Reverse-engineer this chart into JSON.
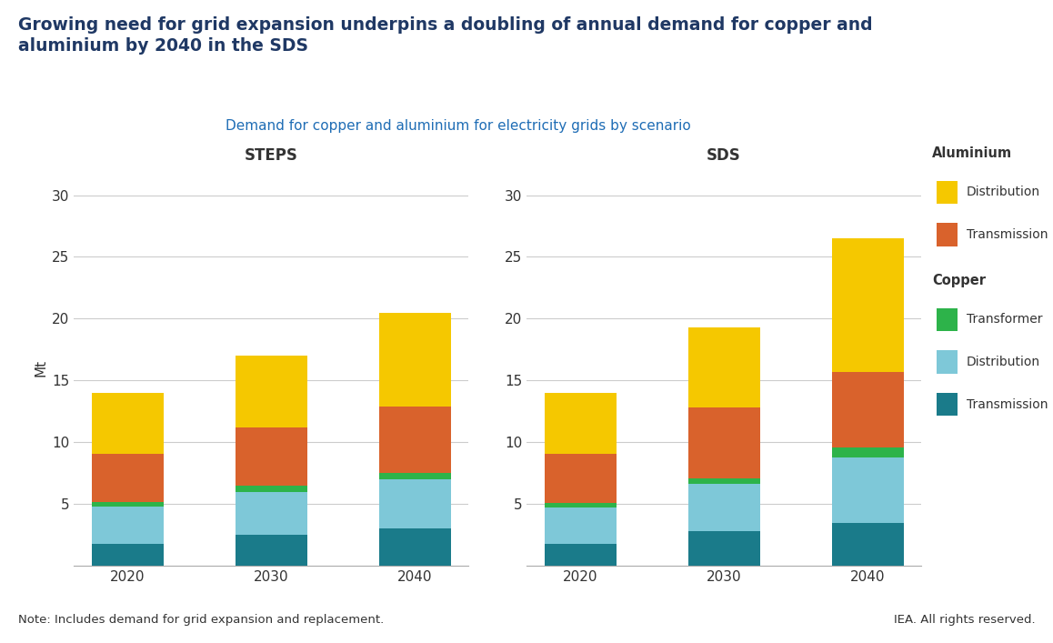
{
  "title_main": "Growing need for grid expansion underpins a doubling of annual demand for copper and\naluminium by 2040 in the SDS",
  "subtitle": "Demand for copper and aluminium for electricity grids by scenario",
  "years": [
    "2020",
    "2030",
    "2040"
  ],
  "steps_label": "STEPS",
  "sds_label": "SDS",
  "ylabel": "Mt",
  "note": "Note: Includes demand for grid expansion and replacement.",
  "source": "IEA. All rights reserved.",
  "ylim": [
    0,
    32
  ],
  "yticks": [
    5,
    10,
    15,
    20,
    25,
    30
  ],
  "colors": {
    "copper_transmission": "#1a7b8a",
    "copper_distribution": "#7ec8d8",
    "copper_transformer": "#2db34a",
    "al_transmission": "#d9622c",
    "al_distribution": "#f5c800"
  },
  "steps": {
    "copper_transmission": [
      1.8,
      2.5,
      3.0
    ],
    "copper_distribution": [
      3.0,
      3.5,
      4.0
    ],
    "copper_transformer": [
      0.4,
      0.5,
      0.5
    ],
    "al_transmission": [
      3.9,
      4.7,
      5.4
    ],
    "al_distribution": [
      4.9,
      5.8,
      7.6
    ]
  },
  "sds": {
    "copper_transmission": [
      1.8,
      2.8,
      3.5
    ],
    "copper_distribution": [
      2.9,
      3.8,
      5.3
    ],
    "copper_transformer": [
      0.4,
      0.5,
      0.8
    ],
    "al_transmission": [
      4.0,
      5.7,
      6.1
    ],
    "al_distribution": [
      4.9,
      6.5,
      10.8
    ]
  },
  "title_color": "#1f3864",
  "subtitle_color": "#1f6db5",
  "bar_width": 0.5
}
